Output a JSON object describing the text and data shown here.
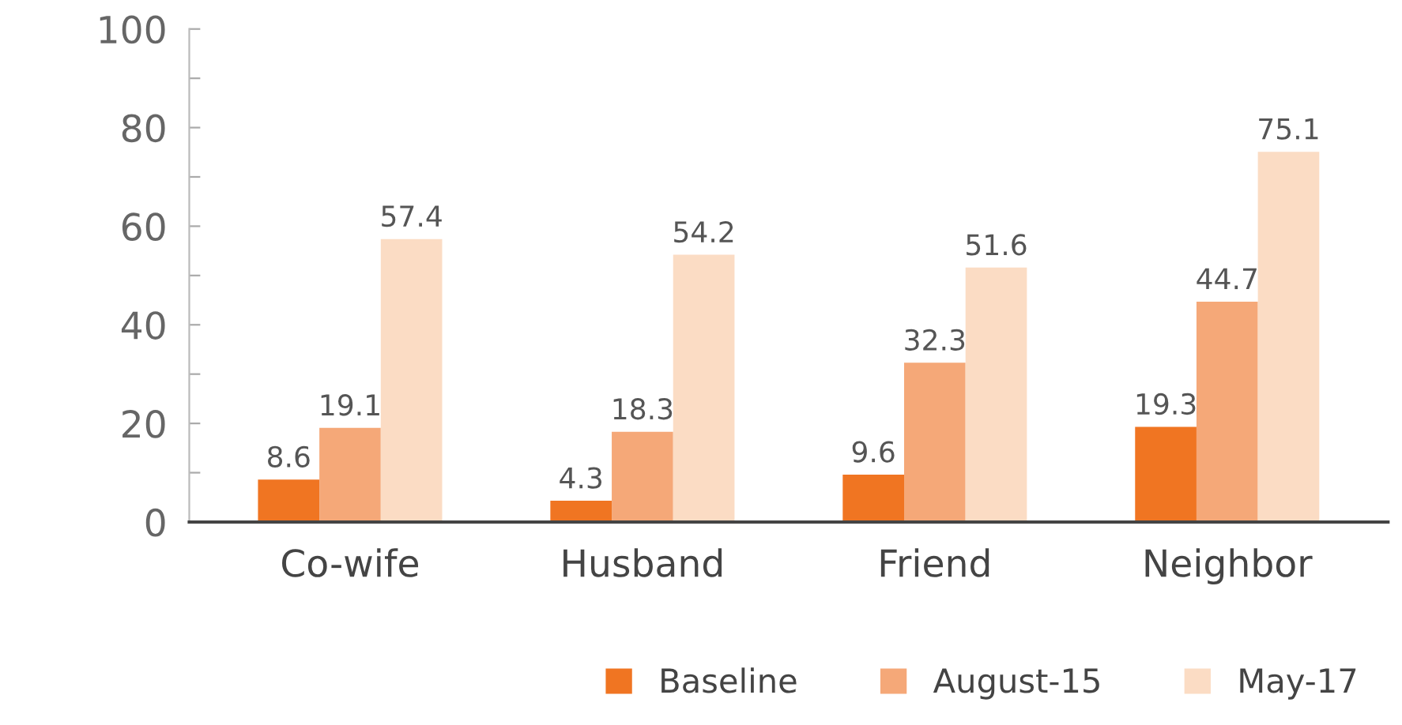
{
  "chart_data": {
    "type": "bar",
    "categories": [
      "Co-wife",
      "Husband",
      "Friend",
      "Neighbor"
    ],
    "series": [
      {
        "name": "Baseline",
        "color": "#f07522",
        "values": [
          8.6,
          4.3,
          9.6,
          19.3
        ]
      },
      {
        "name": "August-15",
        "color": "#f5a878",
        "values": [
          19.1,
          18.3,
          32.3,
          44.7
        ]
      },
      {
        "name": "May-17",
        "color": "#fbdcc4",
        "values": [
          57.4,
          54.2,
          51.6,
          75.1
        ]
      }
    ],
    "ylim": [
      0,
      100
    ],
    "yticks": [
      0,
      {
        "value": 10,
        "label": null
      },
      20,
      {
        "value": 30,
        "label": null
      },
      40,
      {
        "value": 50,
        "label": null
      },
      60,
      {
        "value": 70,
        "label": null
      },
      80,
      {
        "value": 90,
        "label": null
      },
      100
    ],
    "data_labels": true,
    "grid": false,
    "legend": "bottom"
  }
}
